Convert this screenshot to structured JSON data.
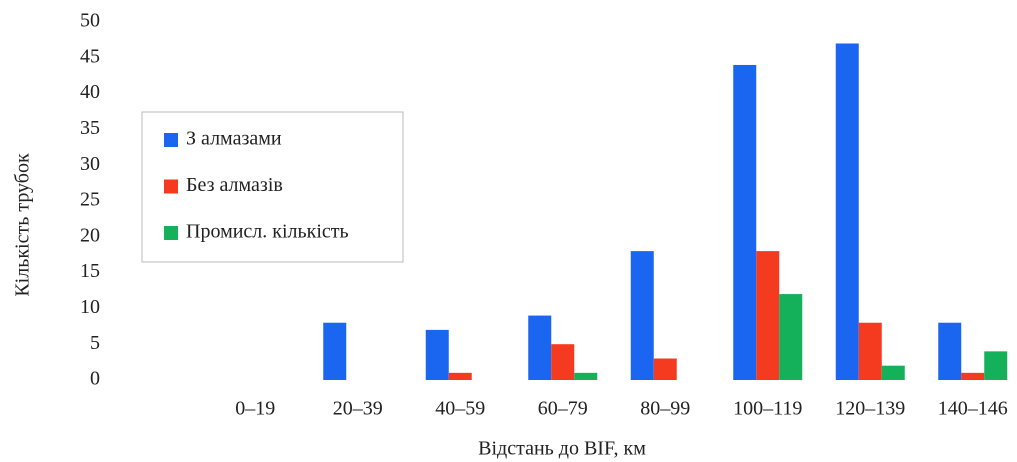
{
  "chart_data": {
    "type": "bar",
    "x_label": "Відстань до BIF, км",
    "y_label": "Кількість трубок",
    "categories": [
      "0–19",
      "20–39",
      "40–59",
      "60–79",
      "80–99",
      "100–119",
      "120–139",
      "140–146"
    ],
    "series": [
      {
        "name": "З алмазами",
        "color": "#1a66f0",
        "values": [
          0,
          8,
          7,
          9,
          18,
          44,
          47,
          8
        ]
      },
      {
        "name": "Без алмазів",
        "color": "#f43a1f",
        "values": [
          0,
          0,
          1,
          5,
          3,
          18,
          8,
          1
        ]
      },
      {
        "name": "Промисл. кількість",
        "color": "#14b05a",
        "values": [
          0,
          0,
          0,
          1,
          0,
          12,
          2,
          4
        ]
      }
    ],
    "ylim": [
      0,
      50
    ],
    "yticks": [
      0,
      5,
      10,
      15,
      20,
      25,
      30,
      35,
      40,
      45,
      50
    ],
    "legend": "upper left"
  }
}
